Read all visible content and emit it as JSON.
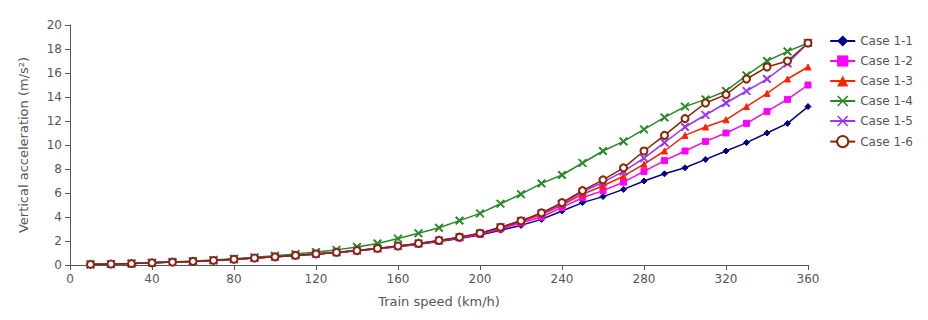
{
  "chart_data": {
    "type": "line",
    "xlabel": "Train speed (km/h)",
    "ylabel": "Vertical acceleration (m/s²)",
    "x": [
      10,
      20,
      30,
      40,
      50,
      60,
      70,
      80,
      90,
      100,
      110,
      120,
      130,
      140,
      150,
      160,
      170,
      180,
      190,
      200,
      210,
      220,
      230,
      240,
      250,
      260,
      270,
      280,
      290,
      300,
      310,
      320,
      330,
      340,
      350,
      360
    ],
    "xlim": [
      0,
      360
    ],
    "xticks": [
      0,
      40,
      80,
      120,
      160,
      200,
      240,
      280,
      320,
      360
    ],
    "ylim": [
      0,
      20
    ],
    "yticks": [
      0,
      2,
      4,
      6,
      8,
      10,
      12,
      14,
      16,
      18,
      20
    ],
    "grid": false,
    "legend": "right",
    "series": [
      {
        "name": "Case 1-1",
        "color": "#00008B",
        "marker": "diamond",
        "values": [
          0.05,
          0.08,
          0.12,
          0.18,
          0.24,
          0.3,
          0.38,
          0.48,
          0.58,
          0.68,
          0.8,
          0.92,
          1.05,
          1.18,
          1.35,
          1.52,
          1.72,
          1.95,
          2.2,
          2.5,
          2.9,
          3.3,
          3.8,
          4.5,
          5.2,
          5.7,
          6.3,
          7.0,
          7.6,
          8.1,
          8.8,
          9.5,
          10.2,
          11.0,
          11.8,
          13.2
        ]
      },
      {
        "name": "Case 1-2",
        "color": "#FF00FF",
        "marker": "square",
        "values": [
          0.05,
          0.08,
          0.12,
          0.18,
          0.24,
          0.3,
          0.38,
          0.48,
          0.58,
          0.68,
          0.8,
          0.92,
          1.05,
          1.2,
          1.37,
          1.55,
          1.75,
          2.0,
          2.25,
          2.55,
          3.0,
          3.5,
          4.0,
          4.8,
          5.6,
          6.2,
          6.9,
          7.8,
          8.7,
          9.5,
          10.3,
          11.0,
          11.8,
          12.8,
          13.8,
          15.0
        ]
      },
      {
        "name": "Case 1-3",
        "color": "#FF2000",
        "marker": "triangle",
        "values": [
          0.05,
          0.08,
          0.12,
          0.18,
          0.24,
          0.3,
          0.38,
          0.48,
          0.58,
          0.68,
          0.8,
          0.92,
          1.05,
          1.2,
          1.38,
          1.56,
          1.78,
          2.02,
          2.3,
          2.6,
          3.1,
          3.6,
          4.2,
          5.0,
          5.9,
          6.6,
          7.4,
          8.4,
          9.5,
          10.8,
          11.5,
          12.1,
          13.2,
          14.3,
          15.5,
          16.5
        ]
      },
      {
        "name": "Case 1-4",
        "color": "#228B22",
        "marker": "x",
        "values": [
          0.05,
          0.08,
          0.12,
          0.18,
          0.25,
          0.33,
          0.42,
          0.53,
          0.65,
          0.78,
          0.92,
          1.08,
          1.26,
          1.5,
          1.8,
          2.2,
          2.65,
          3.1,
          3.7,
          4.3,
          5.1,
          5.9,
          6.8,
          7.5,
          8.5,
          9.5,
          10.3,
          11.3,
          12.3,
          13.2,
          13.8,
          14.5,
          15.8,
          17.0,
          17.8,
          18.5
        ]
      },
      {
        "name": "Case 1-5",
        "color": "#9B30FF",
        "marker": "x",
        "values": [
          0.05,
          0.08,
          0.12,
          0.18,
          0.24,
          0.3,
          0.38,
          0.48,
          0.58,
          0.68,
          0.8,
          0.92,
          1.05,
          1.2,
          1.38,
          1.58,
          1.8,
          2.05,
          2.32,
          2.65,
          3.15,
          3.68,
          4.3,
          5.1,
          6.1,
          6.9,
          7.8,
          8.9,
          10.2,
          11.5,
          12.5,
          13.5,
          14.5,
          15.5,
          16.8,
          18.5
        ]
      },
      {
        "name": "Case 1-6",
        "color": "#8B2500",
        "marker": "emptyCircle",
        "values": [
          0.05,
          0.08,
          0.12,
          0.18,
          0.24,
          0.3,
          0.38,
          0.48,
          0.58,
          0.68,
          0.8,
          0.92,
          1.05,
          1.2,
          1.38,
          1.58,
          1.8,
          2.05,
          2.32,
          2.65,
          3.15,
          3.68,
          4.35,
          5.2,
          6.2,
          7.1,
          8.1,
          9.5,
          10.8,
          12.2,
          13.5,
          14.2,
          15.5,
          16.5,
          17.0,
          18.5
        ]
      }
    ]
  }
}
